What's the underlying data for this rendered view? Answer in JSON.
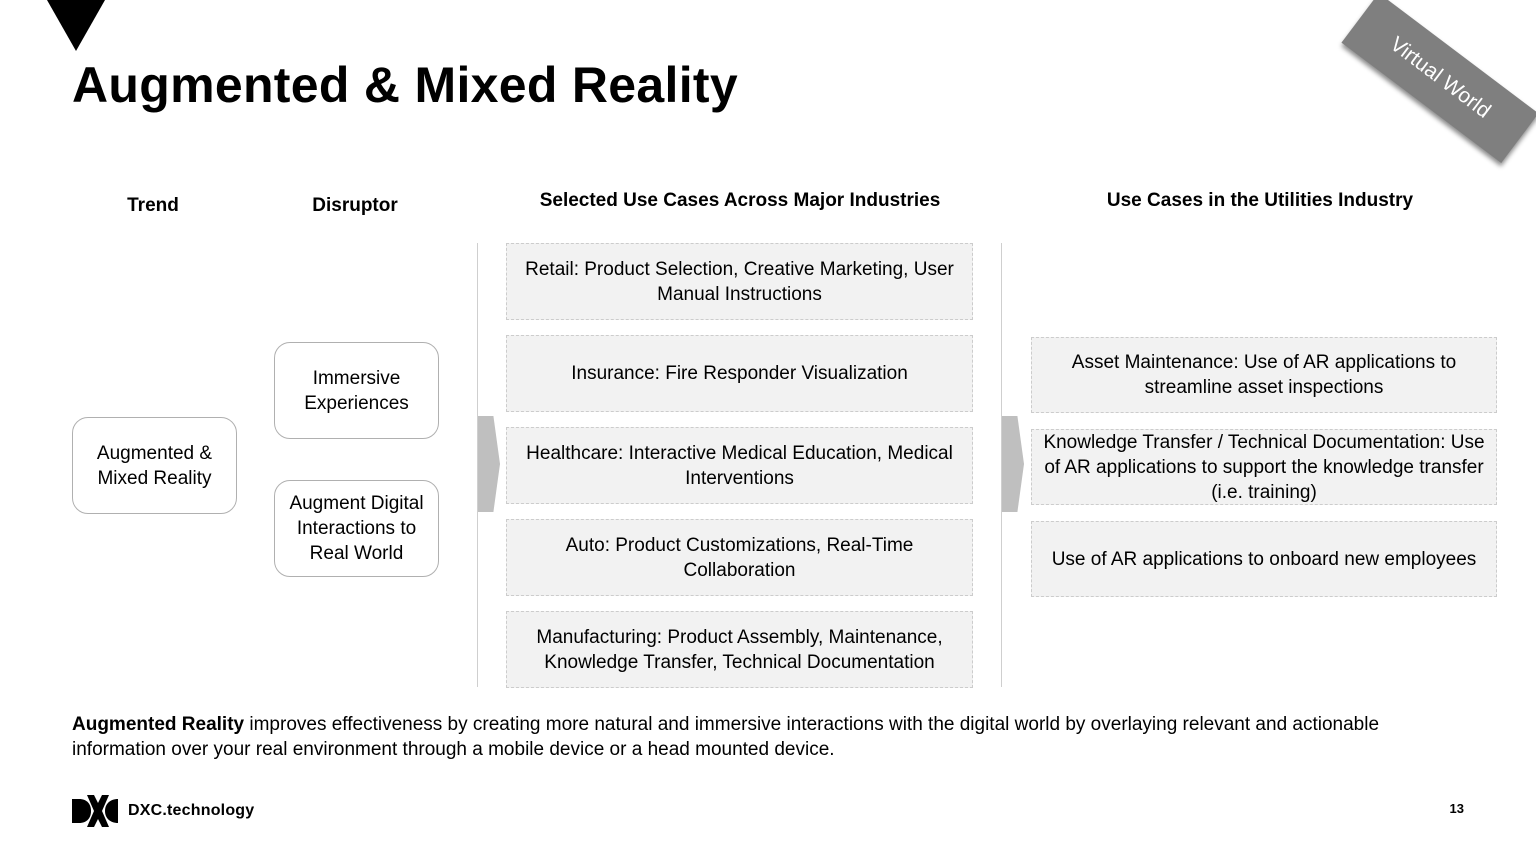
{
  "slide": {
    "title": "Augmented & Mixed Reality",
    "ribbon": "Virtual World",
    "page_number": "13"
  },
  "headers": {
    "trend": "Trend",
    "disruptor": "Disruptor",
    "industries": "Selected Use Cases Across Major Industries",
    "utilities": "Use Cases in the Utilities Industry"
  },
  "trend": {
    "label": "Augmented & Mixed Reality"
  },
  "disruptors": [
    {
      "label": "Immersive Experiences"
    },
    {
      "label": "Augment Digital Interactions to Real World"
    }
  ],
  "industry_use_cases": [
    "Retail: Product Selection, Creative Marketing, User Manual Instructions",
    "Insurance: Fire Responder Visualization",
    "Healthcare: Interactive Medical Education, Medical Interventions",
    "Auto: Product Customizations, Real-Time Collaboration",
    "Manufacturing: Product Assembly, Maintenance, Knowledge Transfer, Technical Documentation"
  ],
  "utility_use_cases": [
    "Asset Maintenance: Use of AR applications to streamline asset inspections",
    "Knowledge Transfer / Technical Documentation: Use of AR applications to support the knowledge transfer (i.e. training)",
    "Use of AR applications to onboard new employees"
  ],
  "footer": {
    "bold": "Augmented Reality",
    "text": " improves effectiveness by creating more natural and immersive interactions with the digital world by overlaying relevant and actionable information over your real environment through a mobile device or a head mounted device."
  },
  "logo": {
    "text": "DXC.technology"
  },
  "icons": {
    "corner": "triangle-down-icon",
    "logo_mark": "dxc-logo-icon",
    "arrows": "chevron-right-icon"
  },
  "colors": {
    "ribbon": "#7f7f7f",
    "case_fill": "#f2f2f2",
    "chevron": "#bfbfbf"
  }
}
